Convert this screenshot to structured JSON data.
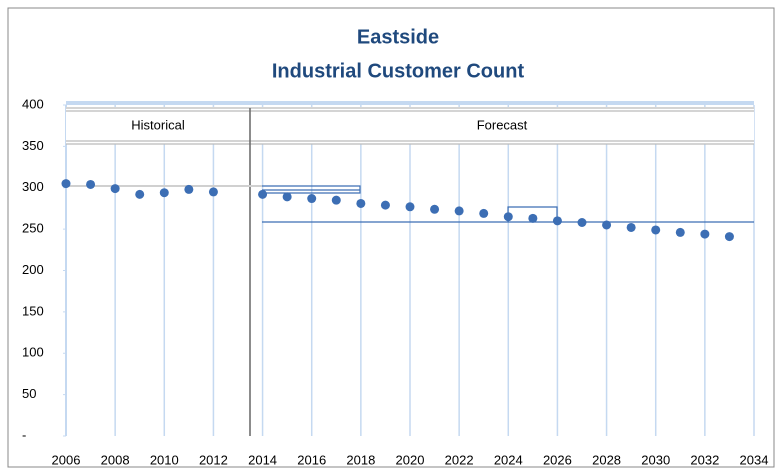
{
  "chart_data": {
    "type": "scatter",
    "title": "Eastside",
    "subtitle": "Industrial Customer Count",
    "annotations": [
      "Historical",
      "Forecast"
    ],
    "x": [
      2006,
      2007,
      2008,
      2009,
      2010,
      2011,
      2012,
      2014,
      2015,
      2016,
      2017,
      2018,
      2019,
      2020,
      2021,
      2022,
      2023,
      2024,
      2025,
      2026,
      2027,
      2028,
      2029,
      2030,
      2031,
      2032,
      2033
    ],
    "values": [
      305,
      304,
      299,
      292,
      294,
      298,
      295,
      292,
      289,
      287,
      285,
      281,
      279,
      277,
      274,
      272,
      269,
      265,
      263,
      260,
      258,
      255,
      252,
      249,
      246,
      244,
      241
    ],
    "color": "#3c6eb4",
    "xlim": [
      2006,
      2034
    ],
    "xticks": [
      2006,
      2008,
      2010,
      2012,
      2014,
      2016,
      2018,
      2020,
      2022,
      2024,
      2026,
      2028,
      2030,
      2032,
      2034
    ],
    "ylim": [
      0,
      400
    ],
    "yticks": [
      {
        "value": 0,
        "label": "-"
      },
      50,
      100,
      150,
      200,
      250,
      300,
      350,
      400
    ],
    "grid": "x"
  }
}
